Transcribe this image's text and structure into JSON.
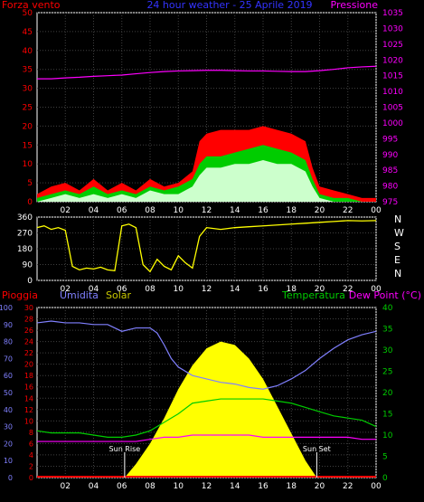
{
  "chart_data": [
    {
      "type": "line",
      "panel": "wind-pressure",
      "title": "24 hour weather - 25 Aprile 2019",
      "left_axis_label": "Forza vento",
      "right_axis_label": "Pressione",
      "x_ticks": [
        "02",
        "04",
        "06",
        "08",
        "10",
        "12",
        "14",
        "16",
        "18",
        "20",
        "22",
        "00"
      ],
      "x_range": [
        0,
        24
      ],
      "y_ticks": [
        0,
        5,
        10,
        15,
        20,
        25,
        30,
        35,
        40,
        45,
        50
      ],
      "y_range": [
        0,
        50
      ],
      "y2_ticks": [
        975,
        980,
        985,
        990,
        995,
        1000,
        1005,
        1010,
        1015,
        1020,
        1025,
        1030,
        1035
      ],
      "y2_range": [
        975,
        1035
      ],
      "grid": true,
      "colors": {
        "gust": "#ff0000",
        "avg": "#00cc00",
        "speed": "#ccffcc",
        "pressure": "#ff00ff",
        "left_axis": "#ff0000",
        "right_axis": "#ff00ff",
        "title": "#3333ff"
      },
      "series": [
        {
          "key": "pressure",
          "axis": "right",
          "x": [
            0,
            1,
            2,
            3,
            4,
            5,
            6,
            7,
            8,
            9,
            10,
            11,
            12,
            13,
            14,
            15,
            16,
            17,
            18,
            19,
            20,
            21,
            22,
            23,
            24
          ],
          "values": [
            1014,
            1014,
            1014.3,
            1014.5,
            1014.8,
            1015,
            1015.2,
            1015.6,
            1016,
            1016.3,
            1016.5,
            1016.6,
            1016.7,
            1016.7,
            1016.6,
            1016.5,
            1016.5,
            1016.4,
            1016.3,
            1016.3,
            1016.6,
            1017,
            1017.5,
            1017.8,
            1018
          ]
        },
        {
          "key": "gust",
          "axis": "left",
          "x": [
            0,
            1,
            2,
            3,
            4,
            5,
            6,
            7,
            8,
            9,
            10,
            11,
            11.5,
            12,
            13,
            14,
            15,
            16,
            17,
            18,
            19,
            19.5,
            20,
            21,
            22,
            23,
            24
          ],
          "values": [
            2,
            4,
            5,
            3,
            6,
            3,
            5,
            3,
            6,
            4,
            5,
            8,
            16,
            18,
            19,
            19,
            19,
            20,
            19,
            18,
            16,
            9,
            4,
            3,
            2,
            1,
            1
          ]
        },
        {
          "key": "avg",
          "axis": "left",
          "x": [
            0,
            1,
            2,
            3,
            4,
            5,
            6,
            7,
            8,
            9,
            10,
            11,
            11.5,
            12,
            13,
            14,
            15,
            16,
            17,
            18,
            19,
            19.5,
            20,
            21,
            22,
            23,
            24
          ],
          "values": [
            1,
            2,
            3,
            2,
            4,
            2,
            3,
            2,
            4,
            3,
            4,
            6,
            10,
            12,
            12,
            13,
            14,
            15,
            14,
            13,
            11,
            6,
            2,
            1,
            1,
            0,
            0
          ]
        },
        {
          "key": "speed",
          "axis": "left",
          "x": [
            0,
            1,
            2,
            3,
            4,
            5,
            6,
            7,
            8,
            9,
            10,
            11,
            11.5,
            12,
            13,
            14,
            15,
            16,
            17,
            18,
            19,
            19.5,
            20,
            21,
            22,
            23,
            24
          ],
          "values": [
            0,
            1,
            2,
            1,
            2,
            1,
            2,
            1,
            3,
            2,
            2,
            4,
            7,
            9,
            9,
            10,
            10,
            11,
            10,
            10,
            8,
            4,
            1,
            0,
            0,
            0,
            0
          ]
        }
      ]
    },
    {
      "type": "line",
      "panel": "wind-direction",
      "x_ticks": [
        "02",
        "04",
        "06",
        "08",
        "10",
        "12",
        "14",
        "16",
        "18",
        "20",
        "22",
        "00"
      ],
      "x_range": [
        0,
        24
      ],
      "y_ticks": [
        0,
        90,
        180,
        270,
        360
      ],
      "y_range": [
        0,
        360
      ],
      "compass_labels": [
        "N",
        "W",
        "S",
        "E",
        "N"
      ],
      "grid": true,
      "colors": {
        "direction": "#ffff00"
      },
      "series": [
        {
          "key": "direction",
          "x": [
            0,
            0.5,
            1,
            1.5,
            2,
            2.5,
            3,
            3.5,
            4,
            4.5,
            5,
            5.5,
            6,
            6.5,
            7,
            7.5,
            8,
            8.5,
            9,
            9.5,
            10,
            10.5,
            11,
            11.5,
            12,
            13,
            14,
            15,
            16,
            17,
            18,
            19,
            20,
            21,
            22,
            23,
            24
          ],
          "values": [
            300,
            310,
            290,
            300,
            285,
            80,
            60,
            70,
            65,
            75,
            60,
            55,
            310,
            320,
            300,
            90,
            50,
            120,
            80,
            60,
            140,
            100,
            70,
            250,
            300,
            290,
            300,
            305,
            310,
            315,
            320,
            325,
            330,
            335,
            340,
            338,
            340
          ]
        }
      ]
    },
    {
      "type": "area",
      "panel": "rain-humidity-temperature",
      "left_labels": [
        "Pioggia",
        "Umidita",
        "Solar"
      ],
      "right_labels": [
        "Temperatura",
        "Dew Point (°C)"
      ],
      "annotations": [
        "Sun Rise",
        "Sun Set"
      ],
      "x_ticks": [
        "02",
        "04",
        "06",
        "08",
        "10",
        "12",
        "14",
        "16",
        "18",
        "20",
        "22",
        "00"
      ],
      "x_range": [
        0,
        24
      ],
      "rain_ticks": [
        0,
        2,
        4,
        6,
        8,
        10,
        12,
        14,
        16,
        18,
        20,
        22,
        24,
        26,
        28,
        30
      ],
      "rain_range": [
        0,
        30
      ],
      "humidity_ticks": [
        0,
        10,
        20,
        30,
        40,
        50,
        60,
        70,
        80,
        90,
        100
      ],
      "humidity_range": [
        0,
        100
      ],
      "temp_ticks": [
        0,
        5,
        10,
        15,
        20,
        25,
        30,
        35,
        40
      ],
      "temp_range": [
        0,
        40
      ],
      "grid": true,
      "colors": {
        "rain": "#ff0000",
        "humidity": "#8080ff",
        "solar": "#ffff00",
        "temp": "#00cc00",
        "dew": "#ff00ff",
        "sun_label": "#ffffff"
      },
      "series": [
        {
          "key": "humidity",
          "x": [
            0,
            1,
            2,
            3,
            4,
            5,
            5.5,
            6,
            7,
            8,
            8.5,
            9,
            9.5,
            10,
            11,
            12,
            13,
            14,
            15,
            16,
            17,
            18,
            19,
            20,
            21,
            22,
            23,
            24
          ],
          "values": [
            91,
            92,
            91,
            91,
            90,
            90,
            88,
            86,
            88,
            88,
            85,
            78,
            70,
            65,
            60,
            58,
            56,
            55,
            53,
            52,
            54,
            58,
            63,
            70,
            76,
            81,
            84,
            86
          ]
        },
        {
          "key": "temp",
          "x": [
            0,
            1,
            2,
            3,
            4,
            5,
            6,
            7,
            8,
            9,
            10,
            11,
            12,
            13,
            14,
            15,
            16,
            17,
            18,
            19,
            20,
            21,
            22,
            23,
            24
          ],
          "values": [
            11,
            10.5,
            10.5,
            10.5,
            10,
            9.5,
            9.5,
            10,
            11,
            13,
            15,
            17.5,
            18,
            18.5,
            18.5,
            18.5,
            18.5,
            18,
            17.5,
            16.5,
            15.5,
            14.5,
            14,
            13.5,
            12
          ]
        },
        {
          "key": "dew",
          "x": [
            0,
            1,
            2,
            3,
            4,
            5,
            6,
            7,
            8,
            9,
            10,
            11,
            12,
            13,
            14,
            15,
            16,
            17,
            18,
            19,
            20,
            21,
            22,
            23,
            24
          ],
          "values": [
            8.5,
            8.5,
            8.5,
            8.5,
            8.5,
            8.5,
            8.5,
            8.5,
            9,
            9.5,
            9.5,
            10,
            10,
            10,
            10,
            10,
            9.5,
            9.5,
            9.5,
            9.5,
            9.5,
            9.5,
            9.5,
            9,
            9
          ]
        },
        {
          "key": "solar",
          "x": [
            6.2,
            7,
            8,
            9,
            10,
            11,
            12,
            13,
            14,
            15,
            16,
            17,
            18,
            19,
            19.8
          ],
          "values": [
            0,
            8,
            20,
            35,
            52,
            66,
            76,
            80,
            78,
            70,
            58,
            42,
            26,
            10,
            0
          ]
        },
        {
          "key": "rain",
          "x": [
            0,
            24
          ],
          "values": [
            0,
            0
          ]
        }
      ],
      "sun_rise": 6.2,
      "sun_set": 19.8
    }
  ]
}
